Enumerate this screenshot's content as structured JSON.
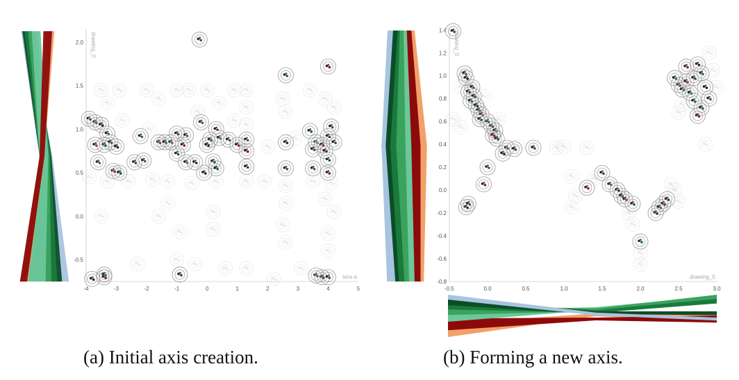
{
  "figure": {
    "captions": [
      "(a) Initial axis creation.",
      "(b) Forming a new axis."
    ]
  },
  "chart_data": [
    {
      "type": "scatter",
      "caption": "(a) Initial axis creation.",
      "xlabel": "tera-a",
      "ylabel": "drawing_0",
      "xlim": [
        -4,
        5
      ],
      "ylim": [
        -0.75,
        2.15
      ],
      "xticks": [
        "-4",
        "-3",
        "-2",
        "-1",
        "0",
        "1",
        "2",
        "3",
        "4",
        "5"
      ],
      "yticks": [
        "-0.5",
        "0.0",
        "0.5",
        "1.0",
        "1.5",
        "2.0"
      ],
      "grid": false,
      "highlighted_points": [
        {
          "x": -3.9,
          "y": 1.12
        },
        {
          "x": -3.7,
          "y": 1.08
        },
        {
          "x": -3.5,
          "y": 1.05
        },
        {
          "x": -3.3,
          "y": 0.95
        },
        {
          "x": -3.7,
          "y": 0.82
        },
        {
          "x": -3.4,
          "y": 0.82
        },
        {
          "x": -3.2,
          "y": 0.85
        },
        {
          "x": -3.0,
          "y": 0.8
        },
        {
          "x": -3.6,
          "y": 0.62
        },
        {
          "x": -3.1,
          "y": 0.52
        },
        {
          "x": -2.9,
          "y": 0.5
        },
        {
          "x": -2.2,
          "y": 0.92
        },
        {
          "x": -2.4,
          "y": 0.62
        },
        {
          "x": -2.1,
          "y": 0.64
        },
        {
          "x": -1.6,
          "y": 0.85
        },
        {
          "x": -1.2,
          "y": 0.85
        },
        {
          "x": -1.4,
          "y": 0.85
        },
        {
          "x": -1.0,
          "y": 0.95
        },
        {
          "x": -0.7,
          "y": 0.93
        },
        {
          "x": -0.8,
          "y": 0.82
        },
        {
          "x": -1.0,
          "y": 0.72
        },
        {
          "x": -0.7,
          "y": 0.62
        },
        {
          "x": -0.4,
          "y": 0.62
        },
        {
          "x": -0.2,
          "y": 1.08
        },
        {
          "x": 0.3,
          "y": 1.0
        },
        {
          "x": 0.1,
          "y": 0.88
        },
        {
          "x": 0.4,
          "y": 0.9
        },
        {
          "x": 0.0,
          "y": 0.82
        },
        {
          "x": 0.7,
          "y": 0.88
        },
        {
          "x": 1.0,
          "y": 0.82
        },
        {
          "x": 0.2,
          "y": 0.63
        },
        {
          "x": 0.3,
          "y": 0.55
        },
        {
          "x": -0.1,
          "y": 0.5
        },
        {
          "x": 1.3,
          "y": 0.88
        },
        {
          "x": 1.3,
          "y": 0.75
        },
        {
          "x": 1.3,
          "y": 0.57
        },
        {
          "x": 2.6,
          "y": 1.62
        },
        {
          "x": 2.6,
          "y": 0.85
        },
        {
          "x": 2.6,
          "y": 0.55
        },
        {
          "x": 4.0,
          "y": 1.72
        },
        {
          "x": 3.4,
          "y": 0.98
        },
        {
          "x": 4.1,
          "y": 1.03
        },
        {
          "x": 4.0,
          "y": 0.92
        },
        {
          "x": 3.6,
          "y": 0.85
        },
        {
          "x": 3.8,
          "y": 0.82
        },
        {
          "x": 4.2,
          "y": 0.85
        },
        {
          "x": 3.5,
          "y": 0.77
        },
        {
          "x": 3.9,
          "y": 0.75
        },
        {
          "x": 3.5,
          "y": 0.55
        },
        {
          "x": 4.0,
          "y": 0.5
        },
        {
          "x": 4.0,
          "y": 0.65
        },
        {
          "x": -0.25,
          "y": 2.03
        },
        {
          "x": -3.8,
          "y": -0.72
        },
        {
          "x": -3.4,
          "y": -0.67
        },
        {
          "x": -3.4,
          "y": -0.7
        },
        {
          "x": -0.9,
          "y": -0.67
        },
        {
          "x": 3.6,
          "y": -0.68
        },
        {
          "x": 3.8,
          "y": -0.7
        },
        {
          "x": 4.0,
          "y": -0.7
        }
      ],
      "faded_points": [
        {
          "x": -3.5,
          "y": 1.45
        },
        {
          "x": -3.3,
          "y": 1.3
        },
        {
          "x": -2.9,
          "y": 1.45
        },
        {
          "x": -2.0,
          "y": 1.45
        },
        {
          "x": -1.6,
          "y": 1.35
        },
        {
          "x": -1.0,
          "y": 1.45
        },
        {
          "x": -0.6,
          "y": 1.45
        },
        {
          "x": 0.0,
          "y": 1.45
        },
        {
          "x": 0.4,
          "y": 1.3
        },
        {
          "x": 0.9,
          "y": 1.45
        },
        {
          "x": 1.3,
          "y": 1.45
        },
        {
          "x": 1.3,
          "y": 1.25
        },
        {
          "x": 1.3,
          "y": 1.05
        },
        {
          "x": 2.5,
          "y": 1.35
        },
        {
          "x": 2.6,
          "y": 1.2
        },
        {
          "x": 3.4,
          "y": 1.45
        },
        {
          "x": 3.9,
          "y": 1.35
        },
        {
          "x": 4.2,
          "y": 1.25
        },
        {
          "x": -3.9,
          "y": 0.45
        },
        {
          "x": -3.3,
          "y": 0.4
        },
        {
          "x": -2.6,
          "y": 0.4
        },
        {
          "x": -1.8,
          "y": 0.42
        },
        {
          "x": -1.3,
          "y": 0.4
        },
        {
          "x": -0.5,
          "y": 0.38
        },
        {
          "x": 0.3,
          "y": 0.4
        },
        {
          "x": 1.3,
          "y": 0.4
        },
        {
          "x": 1.9,
          "y": 0.4
        },
        {
          "x": 2.6,
          "y": 0.35
        },
        {
          "x": 3.5,
          "y": 0.4
        },
        {
          "x": 4.1,
          "y": 0.38
        },
        {
          "x": 2.6,
          "y": 0.15
        },
        {
          "x": 2.5,
          "y": -0.1
        },
        {
          "x": 2.6,
          "y": -0.3
        },
        {
          "x": 3.9,
          "y": 0.2
        },
        {
          "x": 4.0,
          "y": -0.2
        },
        {
          "x": 4.0,
          "y": -0.4
        },
        {
          "x": -3.5,
          "y": 0.0
        },
        {
          "x": -1.6,
          "y": 0.0
        },
        {
          "x": 0.2,
          "y": 0.05
        },
        {
          "x": 0.2,
          "y": -0.15
        },
        {
          "x": -0.9,
          "y": -0.18
        },
        {
          "x": -1.0,
          "y": -0.5
        },
        {
          "x": -0.4,
          "y": -0.55
        },
        {
          "x": 0.6,
          "y": -0.6
        },
        {
          "x": -2.3,
          "y": -0.55
        },
        {
          "x": 1.3,
          "y": -0.6
        },
        {
          "x": 2.2,
          "y": -0.72
        },
        {
          "x": 3.1,
          "y": -0.6
        },
        {
          "x": -2.8,
          "y": 1.1
        },
        {
          "x": -1.9,
          "y": 1.0
        },
        {
          "x": -0.3,
          "y": 1.2
        },
        {
          "x": 0.9,
          "y": 1.1
        },
        {
          "x": 2.0,
          "y": 0.8
        },
        {
          "x": 2.9,
          "y": 0.9
        },
        {
          "x": 4.2,
          "y": 0.05
        },
        {
          "x": -1.3,
          "y": 0.15
        }
      ],
      "left_axis_bands": [
        {
          "color": "#a8c4e0",
          "top": 0.06,
          "bottom": 0.96
        },
        {
          "color": "#0b4d27",
          "top": 0.1,
          "bottom": 0.82
        },
        {
          "color": "#1a7a3c",
          "top": 0.18,
          "bottom": 0.72
        },
        {
          "color": "#3aa45e",
          "top": 0.3,
          "bottom": 0.6
        },
        {
          "color": "#6cc79a",
          "top": 0.42,
          "bottom": 0.48
        },
        {
          "color": "#f2a06a",
          "top": 0.9,
          "bottom": 0.12
        },
        {
          "color": "#8c0a0a",
          "top": 0.82,
          "bottom": 0.1
        }
      ]
    },
    {
      "type": "scatter",
      "caption": "(b) Forming a new axis.",
      "xlabel": "drawing_5",
      "ylabel": "drawing_0",
      "xlim": [
        -0.5,
        3.0
      ],
      "ylim": [
        -0.8,
        1.42
      ],
      "xticks": [
        "-0.5",
        "0.0",
        "0.5",
        "1.0",
        "1.5",
        "2.0",
        "2.5",
        "3.0"
      ],
      "yticks": [
        "-0.8",
        "-0.6",
        "-0.4",
        "-0.2",
        "0.0",
        "0.2",
        "0.4",
        "0.6",
        "0.8",
        "1.0",
        "1.2",
        "1.4"
      ],
      "grid": false,
      "highlighted_points": [
        {
          "x": -0.45,
          "y": 1.39
        },
        {
          "x": -0.3,
          "y": 1.02
        },
        {
          "x": -0.28,
          "y": 0.98
        },
        {
          "x": -0.2,
          "y": 0.9
        },
        {
          "x": -0.25,
          "y": 0.86
        },
        {
          "x": -0.18,
          "y": 0.82
        },
        {
          "x": -0.22,
          "y": 0.78
        },
        {
          "x": -0.15,
          "y": 0.74
        },
        {
          "x": -0.12,
          "y": 0.7
        },
        {
          "x": -0.08,
          "y": 0.66
        },
        {
          "x": -0.1,
          "y": 0.62
        },
        {
          "x": 0.0,
          "y": 0.6
        },
        {
          "x": 0.05,
          "y": 0.56
        },
        {
          "x": 0.1,
          "y": 0.52
        },
        {
          "x": 0.07,
          "y": 0.48
        },
        {
          "x": 0.12,
          "y": 0.45
        },
        {
          "x": 0.25,
          "y": 0.37
        },
        {
          "x": 0.2,
          "y": 0.32
        },
        {
          "x": 0.0,
          "y": 0.2
        },
        {
          "x": -0.05,
          "y": 0.05
        },
        {
          "x": 0.35,
          "y": 0.36
        },
        {
          "x": 0.6,
          "y": 0.37
        },
        {
          "x": -0.28,
          "y": -0.15
        },
        {
          "x": -0.25,
          "y": -0.12
        },
        {
          "x": 1.3,
          "y": 0.02
        },
        {
          "x": 1.5,
          "y": 0.15
        },
        {
          "x": 1.6,
          "y": 0.05
        },
        {
          "x": 1.7,
          "y": 0.0
        },
        {
          "x": 1.75,
          "y": -0.05
        },
        {
          "x": 1.8,
          "y": -0.08
        },
        {
          "x": 1.9,
          "y": -0.12
        },
        {
          "x": 2.0,
          "y": -0.45
        },
        {
          "x": 2.2,
          "y": -0.2
        },
        {
          "x": 2.25,
          "y": -0.15
        },
        {
          "x": 2.3,
          "y": -0.12
        },
        {
          "x": 2.35,
          "y": -0.08
        },
        {
          "x": 2.45,
          "y": 0.98
        },
        {
          "x": 2.5,
          "y": 0.92
        },
        {
          "x": 2.55,
          "y": 0.88
        },
        {
          "x": 2.6,
          "y": 0.95
        },
        {
          "x": 2.65,
          "y": 0.85
        },
        {
          "x": 2.7,
          "y": 0.78
        },
        {
          "x": 2.75,
          "y": 1.1
        },
        {
          "x": 2.8,
          "y": 1.02
        },
        {
          "x": 2.6,
          "y": 1.08
        },
        {
          "x": 2.7,
          "y": 0.98
        },
        {
          "x": 2.8,
          "y": 0.72
        },
        {
          "x": 2.85,
          "y": 0.9
        },
        {
          "x": 2.9,
          "y": 0.8
        },
        {
          "x": 2.75,
          "y": 0.65
        }
      ],
      "faded_points": [
        {
          "x": -0.45,
          "y": 0.62
        },
        {
          "x": -0.35,
          "y": 0.55
        },
        {
          "x": 0.4,
          "y": 0.38
        },
        {
          "x": 0.9,
          "y": 0.37
        },
        {
          "x": 1.0,
          "y": 0.38
        },
        {
          "x": 1.3,
          "y": 0.37
        },
        {
          "x": 1.1,
          "y": 0.12
        },
        {
          "x": 1.15,
          "y": -0.05
        },
        {
          "x": 1.1,
          "y": -0.15
        },
        {
          "x": 1.9,
          "y": -0.3
        },
        {
          "x": 2.0,
          "y": -0.55
        },
        {
          "x": 2.0,
          "y": -0.65
        },
        {
          "x": 2.45,
          "y": 0.0
        },
        {
          "x": 2.4,
          "y": 0.05
        },
        {
          "x": 2.5,
          "y": -0.1
        },
        {
          "x": 2.85,
          "y": 0.4
        },
        {
          "x": 3.0,
          "y": 0.9
        },
        {
          "x": 2.95,
          "y": 1.05
        },
        {
          "x": 2.9,
          "y": 1.2
        },
        {
          "x": 2.55,
          "y": 0.75
        },
        {
          "x": 2.5,
          "y": 0.68
        },
        {
          "x": 1.85,
          "y": -0.2
        },
        {
          "x": 1.4,
          "y": 0.1
        },
        {
          "x": -0.05,
          "y": 0.82
        },
        {
          "x": 0.15,
          "y": 0.62
        },
        {
          "x": -0.35,
          "y": 0.9
        }
      ],
      "left_axis_bands": [
        {
          "color": "#a8c4e0",
          "left": 0.15,
          "mid": 0.02,
          "right": 0.2
        },
        {
          "color": "#0b4d27",
          "left": 0.25,
          "mid": 0.12,
          "right": 0.28
        },
        {
          "color": "#1a7a3c",
          "left": 0.3,
          "mid": 0.25,
          "right": 0.4
        },
        {
          "color": "#3aa45e",
          "left": 0.38,
          "mid": 0.45,
          "right": 0.5
        },
        {
          "color": "#6cc79a",
          "left": 0.45,
          "mid": 0.58,
          "right": 0.62
        },
        {
          "color": "#8c0a0a",
          "left": 0.55,
          "mid": 0.78,
          "right": 0.75
        },
        {
          "color": "#f2a06a",
          "left": 0.62,
          "mid": 0.92,
          "right": 0.82
        }
      ],
      "bottom_axis_bands": [
        {
          "color": "#a8c4e0"
        },
        {
          "color": "#0b4d27"
        },
        {
          "color": "#1a7a3c"
        },
        {
          "color": "#3aa45e"
        },
        {
          "color": "#6cc79a"
        },
        {
          "color": "#8c0a0a"
        },
        {
          "color": "#f2a06a"
        }
      ]
    }
  ]
}
